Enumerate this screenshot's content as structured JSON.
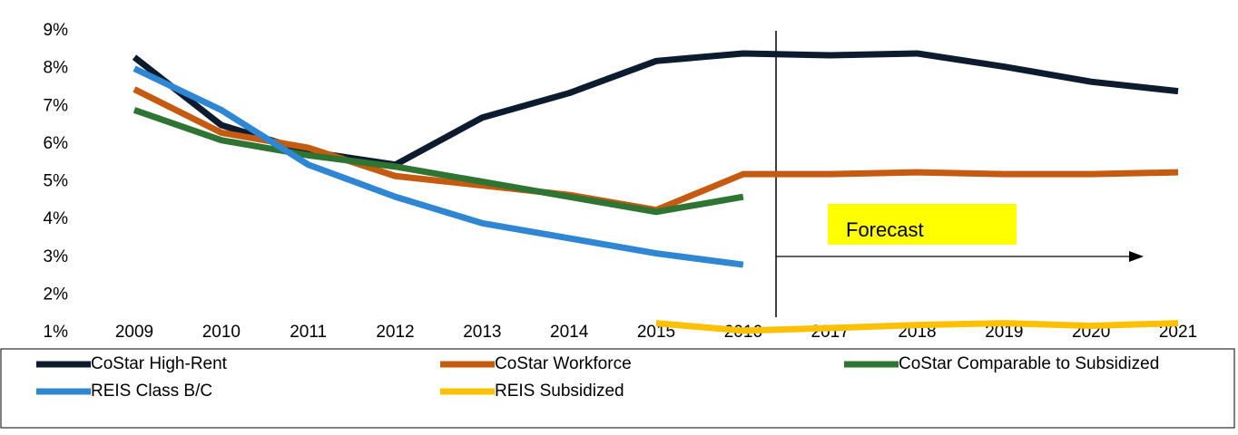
{
  "chart_data": {
    "type": "line",
    "categories": [
      "2009",
      "2010",
      "2011",
      "2012",
      "2013",
      "2014",
      "2015",
      "2016",
      "2017",
      "2018",
      "2019",
      "2020",
      "2021"
    ],
    "series": [
      {
        "name": "CoStar High-Rent",
        "color": "#0d1b2e",
        "values": [
          8.3,
          6.5,
          5.8,
          5.45,
          6.7,
          7.35,
          8.2,
          8.4,
          8.35,
          8.4,
          8.05,
          7.65,
          7.4
        ]
      },
      {
        "name": "CoStar Workforce",
        "color": "#c55a11",
        "values": [
          7.45,
          6.3,
          5.9,
          5.15,
          4.9,
          4.65,
          4.25,
          5.2,
          5.2,
          5.25,
          5.2,
          5.2,
          5.25
        ]
      },
      {
        "name": "CoStar Comparable to Subsidized",
        "color": "#2e7432",
        "values": [
          6.9,
          6.1,
          5.7,
          5.4,
          5.0,
          4.6,
          4.2,
          4.6,
          null,
          null,
          null,
          null,
          null
        ]
      },
      {
        "name": "REIS Class B/C",
        "color": "#2f86d2",
        "values": [
          8.0,
          6.9,
          5.45,
          4.6,
          3.9,
          3.5,
          3.1,
          2.8,
          null,
          null,
          null,
          null,
          null
        ]
      },
      {
        "name": "REIS Subsidized",
        "color": "#ffc000",
        "values": [
          null,
          null,
          null,
          null,
          null,
          null,
          1.25,
          1.05,
          1.12,
          1.2,
          1.25,
          1.18,
          1.25
        ]
      }
    ],
    "ylim": [
      1,
      9
    ],
    "yticks": [
      {
        "value": 1,
        "label": "1%"
      },
      {
        "value": 2,
        "label": "2%"
      },
      {
        "value": 3,
        "label": "3%"
      },
      {
        "value": 4,
        "label": "4%"
      },
      {
        "value": 5,
        "label": "5%"
      },
      {
        "value": 6,
        "label": "6%"
      },
      {
        "value": 7,
        "label": "7%"
      },
      {
        "value": 8,
        "label": "8%"
      },
      {
        "value": 9,
        "label": "9%"
      }
    ],
    "annotation": "Forecast",
    "grid": false
  }
}
